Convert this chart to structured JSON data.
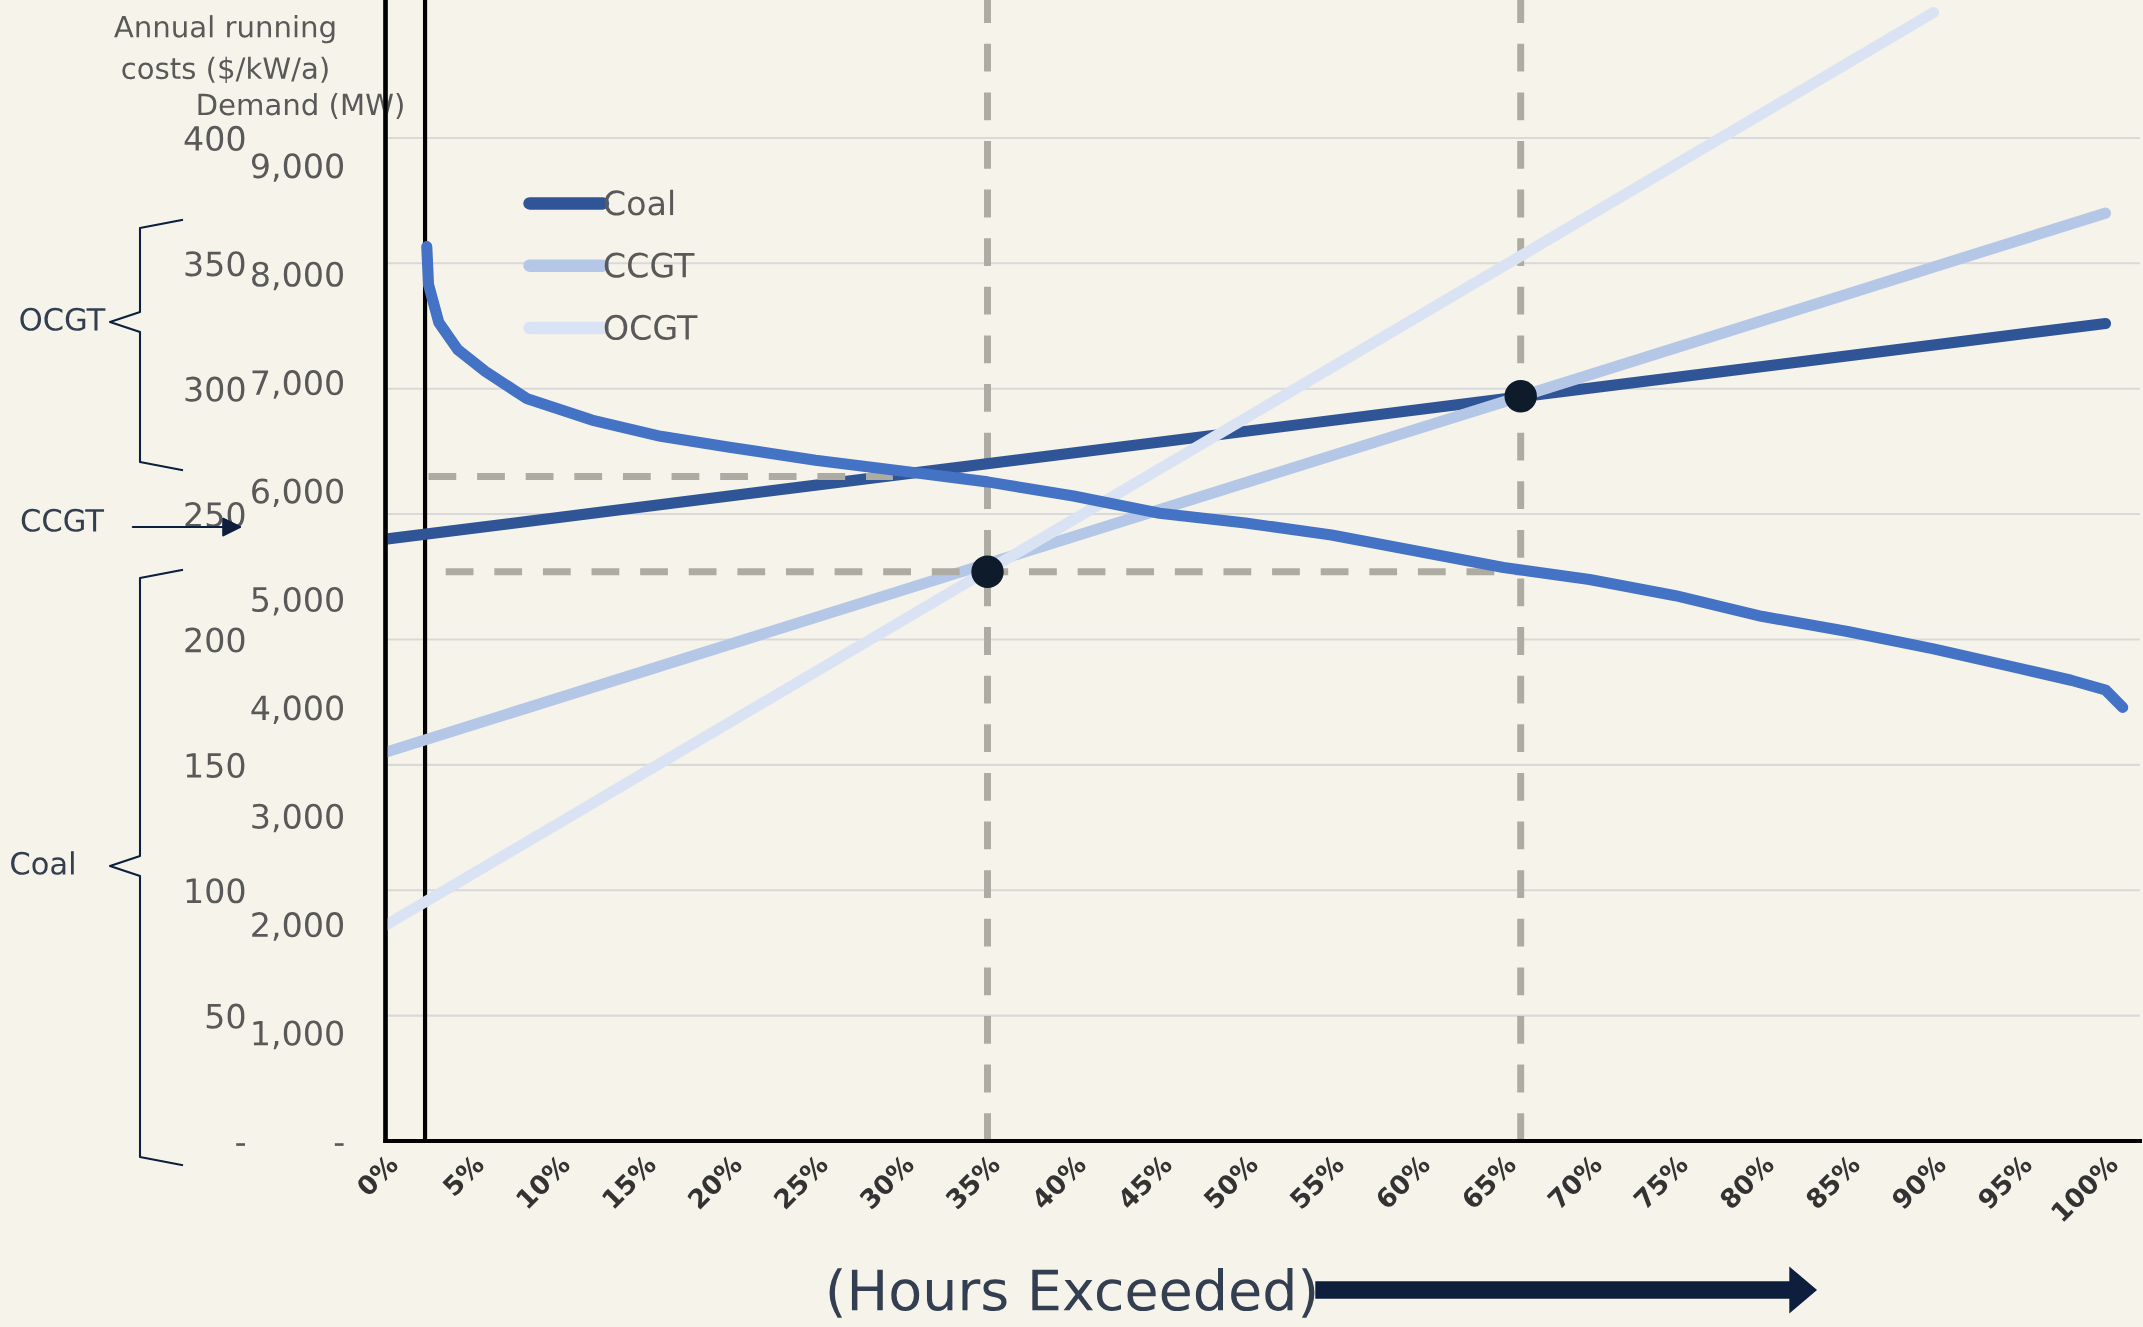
{
  "chart_data": {
    "type": "line",
    "xlabel": "(Hours Exceeded)",
    "ylabel": "Annual running\ncosts ($/kW/a)",
    "y2label": "Demand (MW)",
    "xlim": [
      0,
      102
    ],
    "xticks": [
      {
        "value": 0,
        "label": "0%"
      },
      {
        "value": 5,
        "label": "5%"
      },
      {
        "value": 10,
        "label": "10%"
      },
      {
        "value": 15,
        "label": "15%"
      },
      {
        "value": 20,
        "label": "20%"
      },
      {
        "value": 25,
        "label": "25%"
      },
      {
        "value": 30,
        "label": "30%"
      },
      {
        "value": 35,
        "label": "35%"
      },
      {
        "value": 40,
        "label": "40%"
      },
      {
        "value": 45,
        "label": "45%"
      },
      {
        "value": 50,
        "label": "50%"
      },
      {
        "value": 55,
        "label": "55%"
      },
      {
        "value": 60,
        "label": "60%"
      },
      {
        "value": 65,
        "label": "65%"
      },
      {
        "value": 70,
        "label": "70%"
      },
      {
        "value": 75,
        "label": "75%"
      },
      {
        "value": 80,
        "label": "80%"
      },
      {
        "value": 85,
        "label": "85%"
      },
      {
        "value": 90,
        "label": "90%"
      },
      {
        "value": 95,
        "label": "95%"
      },
      {
        "value": 100,
        "label": "100%"
      }
    ],
    "ylim": [
      0,
      455
    ],
    "yticks": [
      {
        "value": 0,
        "label": "-"
      },
      50,
      100,
      150,
      200,
      250,
      300,
      350,
      400
    ],
    "y2lim": [
      0,
      10525
    ],
    "y2ticks": [
      {
        "value": 0,
        "label": "-"
      },
      {
        "value": 1000,
        "label": "1,000"
      },
      {
        "value": 2000,
        "label": "2,000"
      },
      {
        "value": 3000,
        "label": "3,000"
      },
      {
        "value": 4000,
        "label": "4,000"
      },
      {
        "value": 5000,
        "label": "5,000"
      },
      {
        "value": 6000,
        "label": "6,000"
      },
      {
        "value": 7000,
        "label": "7,000"
      },
      {
        "value": 8000,
        "label": "8,000"
      },
      {
        "value": 9000,
        "label": "9,000"
      }
    ],
    "grid": "y",
    "legend": "top left",
    "line_style": "solid",
    "marker": "none",
    "series": [
      {
        "name": "Coal",
        "color": "#2f5597",
        "x": [
          0,
          100
        ],
        "values": [
          240,
          326
        ]
      },
      {
        "name": "CCGT",
        "color": "#b4c7e7",
        "x": [
          0,
          100
        ],
        "values": [
          155,
          370
        ]
      },
      {
        "name": "OCGT",
        "color": "#dae3f3",
        "x": [
          0,
          90
        ],
        "values": [
          86,
          450
        ]
      },
      {
        "color": "#4472c4",
        "axis": "y2",
        "x": [
          2.4,
          2.5,
          3.1,
          4.2,
          5.8,
          8.2,
          12,
          16,
          20,
          25,
          30,
          35,
          40,
          45,
          50,
          55,
          60,
          65,
          70,
          75,
          80,
          85,
          90,
          95,
          98,
          100,
          101
        ],
        "values": [
          8250,
          7900,
          7550,
          7300,
          7100,
          6850,
          6650,
          6500,
          6400,
          6280,
          6180,
          6080,
          5950,
          5790,
          5700,
          5590,
          5440,
          5290,
          5180,
          5030,
          4840,
          4700,
          4540,
          4360,
          4250,
          4160,
          4000
        ]
      },
      {
        "color": "#aeaba3",
        "line_style": "dashed",
        "x": [
          2.5,
          29.5
        ],
        "values": [
          265,
          265
        ]
      },
      {
        "color": "#aeaba3",
        "line_style": "dashed",
        "x": [
          3.5,
          66
        ],
        "values": [
          227,
          227
        ]
      },
      {
        "type": "scatter",
        "color": "#0d1b2a",
        "marker": "circle",
        "x": [
          35,
          66
        ],
        "values": [
          227,
          297
        ]
      }
    ],
    "ref_lines": [
      {
        "axis": "x",
        "value": 2.3,
        "color": "#000000",
        "line_style": "solid"
      },
      {
        "axis": "x",
        "value": 35,
        "color": "#aeaba3",
        "line_style": "dashed"
      },
      {
        "axis": "x",
        "value": 66,
        "color": "#aeaba3",
        "line_style": "dashed"
      }
    ],
    "annotations": [
      "OCGT",
      "CCGT",
      "Coal"
    ]
  }
}
